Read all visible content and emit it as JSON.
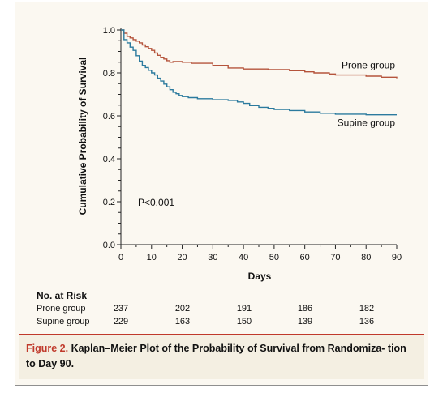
{
  "chart_data": {
    "type": "line",
    "step": true,
    "xlabel": "Days",
    "ylabel": "Cumulative Probability of Survival",
    "xlim": [
      0,
      90
    ],
    "ylim": [
      0.0,
      1.0
    ],
    "xticks": [
      "0",
      "10",
      "20",
      "30",
      "40",
      "50",
      "60",
      "70",
      "80",
      "90"
    ],
    "yticks": [
      "0.0",
      "0.2",
      "0.4",
      "0.6",
      "0.8",
      "1.0"
    ],
    "annotation": "P<0.001",
    "series": [
      {
        "name": "Prone group",
        "color": "#b5543c",
        "x": [
          0,
          1,
          2,
          3,
          4,
          5,
          6,
          7,
          8,
          9,
          10,
          11,
          12,
          13,
          14,
          15,
          16,
          17,
          20,
          23,
          30,
          35,
          40,
          48,
          55,
          60,
          63,
          68,
          70,
          80,
          85,
          90
        ],
        "y": [
          1.0,
          0.985,
          0.97,
          0.963,
          0.955,
          0.948,
          0.94,
          0.93,
          0.922,
          0.914,
          0.905,
          0.893,
          0.882,
          0.873,
          0.865,
          0.857,
          0.85,
          0.853,
          0.85,
          0.845,
          0.835,
          0.823,
          0.818,
          0.815,
          0.81,
          0.805,
          0.8,
          0.795,
          0.79,
          0.785,
          0.78,
          0.775
        ]
      },
      {
        "name": "Supine group",
        "color": "#2b7a9e",
        "x": [
          0,
          1,
          2,
          3,
          4,
          5,
          6,
          7,
          8,
          9,
          10,
          11,
          12,
          13,
          14,
          15,
          16,
          17,
          18,
          19,
          20,
          22,
          25,
          30,
          35,
          38,
          40,
          42,
          45,
          48,
          50,
          55,
          60,
          65,
          70,
          80,
          90
        ],
        "y": [
          1.0,
          0.955,
          0.94,
          0.92,
          0.905,
          0.88,
          0.855,
          0.835,
          0.825,
          0.812,
          0.8,
          0.79,
          0.775,
          0.762,
          0.748,
          0.735,
          0.722,
          0.71,
          0.703,
          0.695,
          0.69,
          0.685,
          0.68,
          0.675,
          0.672,
          0.665,
          0.658,
          0.648,
          0.64,
          0.635,
          0.63,
          0.625,
          0.618,
          0.612,
          0.608,
          0.605,
          0.605
        ]
      }
    ]
  },
  "risk_table": {
    "title": "No. at Risk",
    "prone_label": "Prone group",
    "supine_label": "Supine group",
    "prone": [
      "237",
      "202",
      "191",
      "186",
      "182"
    ],
    "supine": [
      "229",
      "163",
      "150",
      "139",
      "136"
    ]
  },
  "caption": {
    "label": "Figure 2.",
    "text": " Kaplan–Meier Plot of the Probability of Survival from Randomiza- tion to Day 90."
  }
}
